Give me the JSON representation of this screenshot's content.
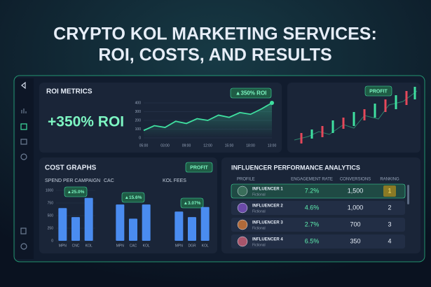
{
  "header": {
    "title_line1": "CRYPTO KOL MARKETING SERVICES:",
    "title_line2": "ROI, COSTS, AND RESULTS"
  },
  "roi_metrics": {
    "title": "ROI METRICS",
    "headline": "+350% ROI",
    "badge": "▲350% ROI",
    "chart": {
      "type": "line",
      "categories": [
        "05:00",
        null,
        "03:00",
        null,
        "09:00",
        null,
        "12:00",
        null,
        "15:00",
        null,
        "18:00",
        null,
        "13:00"
      ],
      "values": [
        85,
        140,
        120,
        190,
        165,
        220,
        200,
        260,
        235,
        290,
        270,
        330,
        400
      ],
      "color": "#3fe0a0",
      "ylim": [
        0,
        400
      ],
      "yticks": [
        0,
        100,
        200,
        300,
        400
      ]
    }
  },
  "market_panel": {
    "badge": "PROFIT"
  },
  "cost_graphs": {
    "title": "COST GRAPHS",
    "badge": "PROFIT",
    "charts": [
      {
        "type": "bar",
        "title": "SPEND PER CAMPAIGN",
        "badge": "▲25.0%",
        "categories": [
          "MPN",
          "CNC",
          "KOL"
        ],
        "values": [
          650,
          470,
          850
        ],
        "color": "#4a8cf0",
        "ylim": [
          0,
          1000
        ],
        "yticks": [
          0,
          250,
          500,
          750,
          1000
        ]
      },
      {
        "type": "bar",
        "title": "CAC",
        "badge": "▲15.6%",
        "categories": [
          "MPN",
          "CAC",
          "KOL"
        ],
        "values": [
          720,
          440,
          720
        ],
        "color": "#4a8cf0",
        "ylim": [
          0,
          1000
        ]
      },
      {
        "type": "bar",
        "title": "KOL FEES",
        "badge": "▲3.07%",
        "categories": [
          "MPN",
          "DGR",
          "KOL"
        ],
        "values": [
          580,
          470,
          670
        ],
        "color": "#4a8cf0",
        "ylim": [
          0,
          1000
        ]
      }
    ]
  },
  "influencers": {
    "title": "INFLUENCER PERFORMANCE ANALYTICS",
    "columns": [
      "PROFILE",
      "ENGAGEMENT RATE",
      "CONVERSIONS",
      "RANKING"
    ],
    "rows": [
      [
        "INFLUENCER 1",
        "Fictional",
        "7.2%",
        "1,500",
        "1"
      ],
      [
        "INFLUENCER 2",
        "Fictional",
        "4.6%",
        "1,000",
        "2"
      ],
      [
        "INFLUENCER 3",
        "Fictional",
        "2.7%",
        "700",
        "3"
      ],
      [
        "INFLUENCER 4",
        "Fictional",
        "6.5%",
        "350",
        "4"
      ]
    ]
  }
}
